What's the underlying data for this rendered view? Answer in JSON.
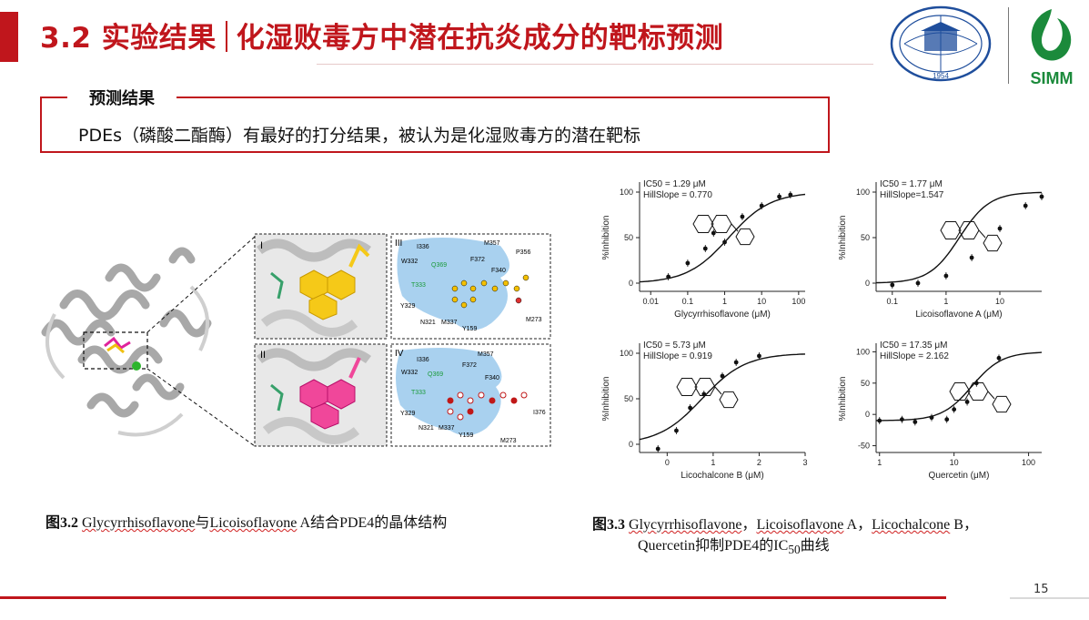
{
  "header": {
    "title_section": "3.2 实验结果",
    "title_topic": "化湿败毒方中潜在抗炎成分的靶标预测",
    "logos": [
      "university-seal-logo",
      "simm-logo"
    ],
    "simm_text": "SIMM",
    "seal_text": "1954"
  },
  "result": {
    "label": "预测结果",
    "text": "PDEs（磷酸二酯酶）有最好的打分结果，被认为是化湿败毒方的潜在靶标"
  },
  "structure_figure": {
    "panel_labels": [
      "I",
      "II",
      "III",
      "IV"
    ],
    "residues_III": [
      "I336",
      "M357",
      "P356",
      "W332",
      "Q369",
      "F372",
      "F340",
      "T333",
      "Y329",
      "N321",
      "M337",
      "Y159",
      "M273"
    ],
    "residues_IV": [
      "I336",
      "M357",
      "W332",
      "Q369",
      "F372",
      "F340",
      "T333",
      "Y329",
      "N321",
      "M337",
      "Y159",
      "I376",
      "M273"
    ]
  },
  "caption_left": {
    "fig": "图3.2",
    "name1": "Glycyrrhisoflavone",
    "mid": "与",
    "name2": "Licoisoflavone",
    "rest": " A结合PDE4的晶体结构"
  },
  "caption_right": {
    "fig": "图3.3",
    "n1": "Glycyrrhisoflavone",
    "s1": "，",
    "n2": "Licoisoflavone",
    "s2": " A，",
    "n3": "Licochalcone",
    "s3": " B，",
    "line2a": "Quercetin抑制PDE4的IC",
    "line2sub": "50",
    "line2b": "曲线"
  },
  "chart_data": [
    {
      "type": "scatter",
      "title": "",
      "xlabel": "Glycyrrhisoflavone (μM)",
      "ylabel": "%Inhibition",
      "xscale": "log",
      "xticks": [
        "0.01",
        "0.1",
        "1",
        "10",
        "100"
      ],
      "yticks": [
        0,
        50,
        100
      ],
      "ylim": [
        -5,
        105
      ],
      "annotation_ic50": "IC50 = 1.29 μM",
      "annotation_hill": "HillSlope = 0.770",
      "ic50": 1.29,
      "hill": 0.77,
      "x": [
        0.03,
        0.1,
        0.3,
        0.5,
        1,
        3,
        10,
        30,
        60
      ],
      "y": [
        7,
        22,
        38,
        55,
        45,
        73,
        85,
        95,
        97
      ]
    },
    {
      "type": "scatter",
      "title": "",
      "xlabel": "Licoisoflavone A (μM)",
      "ylabel": "%Inhibition",
      "xscale": "log",
      "xticks": [
        "0.1",
        "1",
        "10"
      ],
      "yticks": [
        0,
        50,
        100
      ],
      "ylim": [
        -5,
        105
      ],
      "annotation_ic50": "IC50 = 1.77 μM",
      "annotation_hill": "HillSlope=1.547",
      "ic50": 1.77,
      "hill": 1.547,
      "x": [
        0.1,
        0.3,
        1,
        3,
        10,
        30,
        60
      ],
      "y": [
        -2,
        0,
        8,
        28,
        60,
        85,
        95
      ]
    },
    {
      "type": "scatter",
      "title": "",
      "xlabel": "Licochalcone B (μM)",
      "ylabel": "%Inhibition",
      "xscale": "log-decade",
      "xticks": [
        "0",
        "1",
        "2",
        "3"
      ],
      "yticks": [
        0,
        50,
        100
      ],
      "ylim": [
        -5,
        105
      ],
      "annotation_ic50": "IC50 = 5.73 μM",
      "annotation_hill": "HillSlope = 0.919",
      "ic50_log": 0.758,
      "hill": 0.919,
      "x": [
        -0.2,
        0.2,
        0.5,
        0.8,
        1.2,
        1.5,
        2.0
      ],
      "y": [
        -5,
        15,
        40,
        55,
        75,
        90,
        97
      ]
    },
    {
      "type": "scatter",
      "title": "",
      "xlabel": "Quercetin (μM)",
      "ylabel": "%Inhibition",
      "xscale": "log",
      "xticks": [
        "1",
        "10",
        "100"
      ],
      "yticks": [
        -50,
        0,
        50,
        100
      ],
      "ylim": [
        -55,
        105
      ],
      "annotation_ic50": "IC50 = 17.35 μM",
      "annotation_hill": "HillSlope = 2.162",
      "ic50": 17.35,
      "hill": 2.162,
      "x": [
        1,
        2,
        3,
        5,
        8,
        10,
        15,
        20,
        40
      ],
      "y": [
        -10,
        -8,
        -12,
        -5,
        -8,
        8,
        20,
        50,
        90
      ]
    }
  ],
  "footer": {
    "page": "15"
  }
}
